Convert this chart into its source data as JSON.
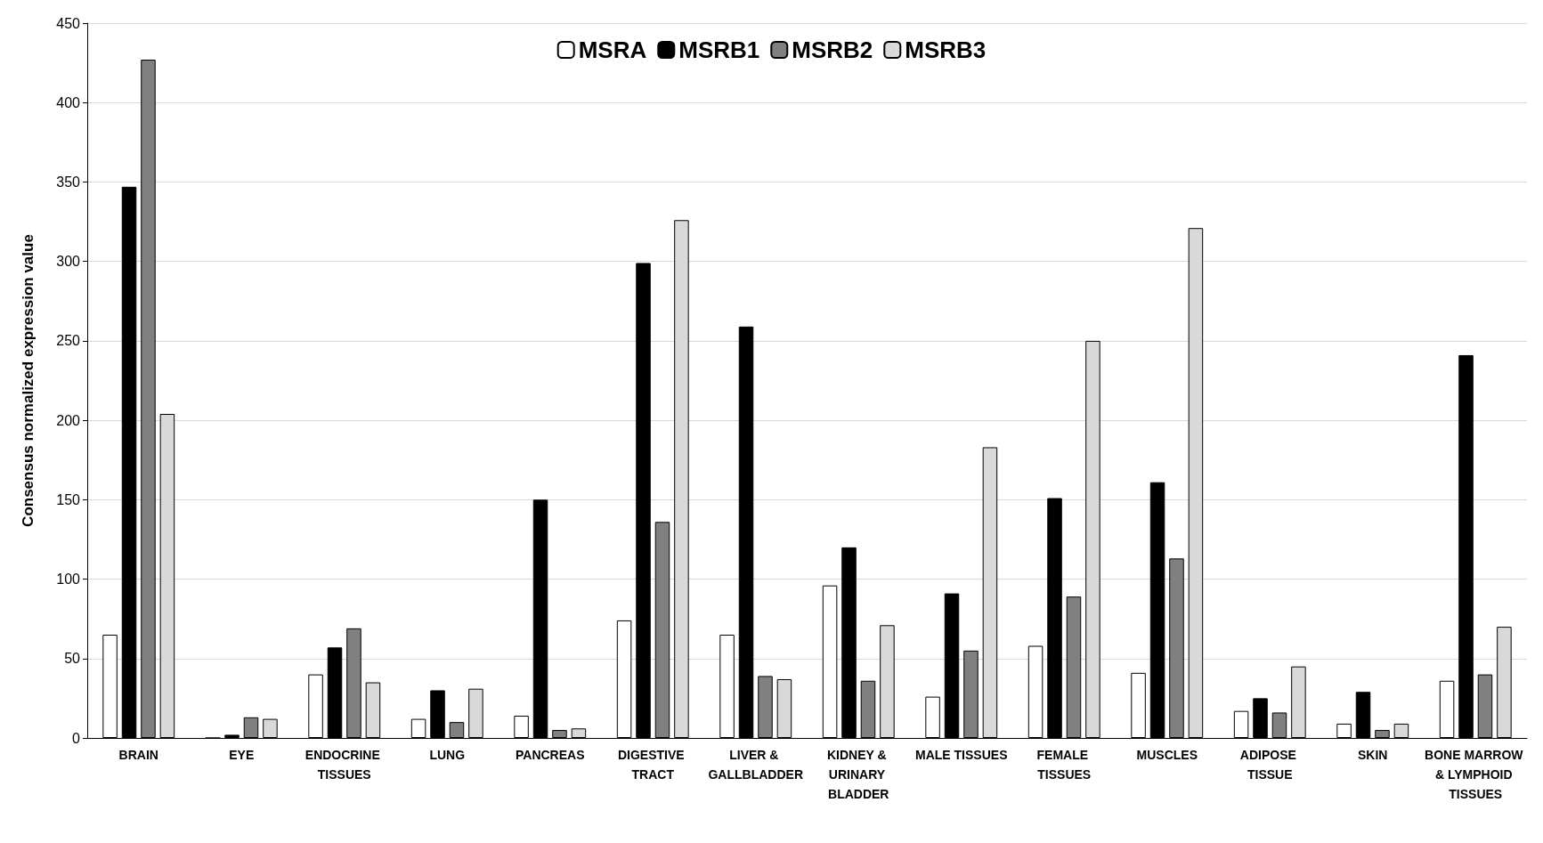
{
  "chart_data": {
    "type": "bar",
    "ylabel": "Consensus normalized expression value",
    "categories": [
      "BRAIN",
      "EYE",
      "ENDOCRINE TISSUES",
      "LUNG",
      "PANCREAS",
      "DIGESTIVE TRACT",
      "LIVER & GALLBLADDER",
      "KIDNEY & URINARY BLADDER",
      "MALE TISSUES",
      "FEMALE TISSUES",
      "MUSCLES",
      "ADIPOSE TISSUE",
      "SKIN",
      "BONE MARROW & LYMPHOID TISSUES"
    ],
    "series": [
      {
        "name": "MSRA",
        "color": "#ffffff",
        "values": [
          65,
          0,
          40,
          12,
          14,
          74,
          65,
          96,
          26,
          58,
          41,
          17,
          9,
          36
        ]
      },
      {
        "name": "MSRB1",
        "color": "#000000",
        "values": [
          347,
          2,
          57,
          30,
          150,
          299,
          259,
          120,
          91,
          151,
          161,
          25,
          29,
          241
        ]
      },
      {
        "name": "MSRB2",
        "color": "#808080",
        "values": [
          427,
          13,
          69,
          10,
          5,
          136,
          39,
          36,
          55,
          89,
          113,
          16,
          5,
          40
        ]
      },
      {
        "name": "MSRB3",
        "color": "#d9d9d9",
        "values": [
          204,
          12,
          35,
          31,
          6,
          326,
          37,
          71,
          183,
          250,
          321,
          45,
          9,
          70
        ]
      }
    ],
    "ylim": [
      0,
      450
    ],
    "yticks": [
      0,
      50,
      100,
      150,
      200,
      250,
      300,
      350,
      400,
      450
    ],
    "grid": "y",
    "legend": "top"
  }
}
